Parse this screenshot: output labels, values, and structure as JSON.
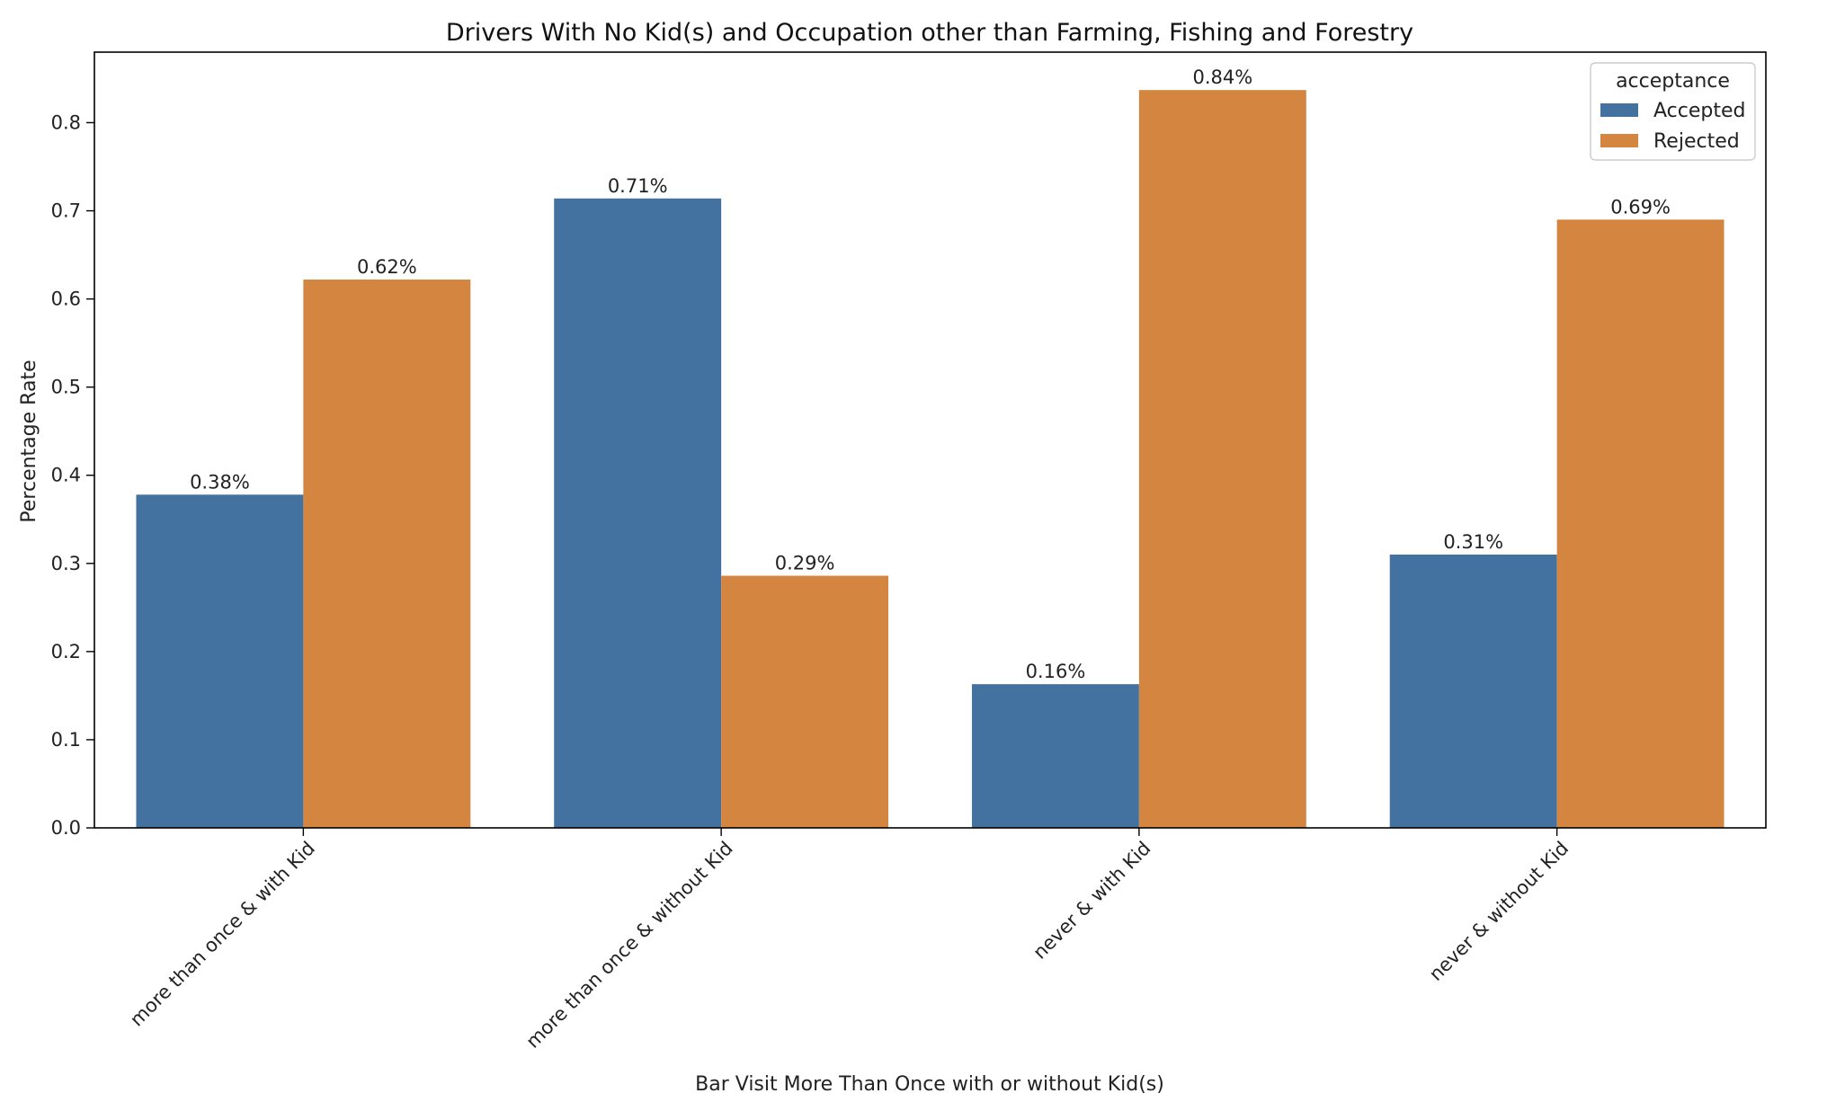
{
  "chart_data": {
    "type": "bar",
    "title": "Drivers With No Kid(s) and Occupation other than Farming, Fishing and Forestry",
    "xlabel": "Bar Visit More Than Once with or without Kid(s)",
    "ylabel": "Percentage Rate",
    "categories": [
      "more than once & with Kid",
      "more than once & without Kid",
      "never & with Kid",
      "never & without Kid"
    ],
    "series": [
      {
        "name": "Accepted",
        "color": "#4472a0",
        "values": [
          0.378,
          0.714,
          0.163,
          0.31
        ],
        "labels": [
          "0.38%",
          "0.71%",
          "0.16%",
          "0.31%"
        ]
      },
      {
        "name": "Rejected",
        "color": "#d48540",
        "values": [
          0.622,
          0.286,
          0.837,
          0.69
        ],
        "labels": [
          "0.62%",
          "0.29%",
          "0.84%",
          "0.69%"
        ]
      }
    ],
    "ylim": [
      0,
      0.88
    ],
    "yticks": [
      0.0,
      0.1,
      0.2,
      0.3,
      0.4,
      0.5,
      0.6,
      0.7,
      0.8
    ],
    "ytick_labels": [
      "0.0",
      "0.1",
      "0.2",
      "0.3",
      "0.4",
      "0.5",
      "0.6",
      "0.7",
      "0.8"
    ],
    "legend": {
      "title": "acceptance",
      "placement": "top-right"
    },
    "grid": false
  }
}
